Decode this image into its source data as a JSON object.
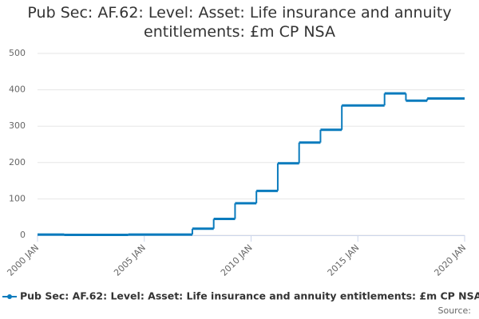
{
  "chart_data": {
    "type": "step-line",
    "title": "Pub Sec: AF.62: Level: Asset: Life insurance and annuity entitlements: £m CP NSA",
    "x": [
      "2000 JAN",
      "2001 APR",
      "2004 APR",
      "2007 APR",
      "2008 APR",
      "2009 APR",
      "2010 APR",
      "2011 APR",
      "2012 APR",
      "2013 APR",
      "2014 APR",
      "2016 APR",
      "2017 APR",
      "2018 APR",
      "2020 JAN"
    ],
    "series": [
      {
        "name": "Pub Sec: AF.62: Level: Asset: Life insurance and annuity entitlements: £m CP NSA",
        "color": "#0a7bbd",
        "values": [
          2,
          1,
          2,
          18,
          45,
          88,
          122,
          198,
          255,
          290,
          357,
          390,
          370,
          376,
          376
        ]
      }
    ],
    "xticks": [
      "2000 JAN",
      "2005 JAN",
      "2010 JAN",
      "2015 JAN",
      "2020 JAN"
    ],
    "ylim": [
      0,
      500
    ],
    "yticks": [
      0,
      100,
      200,
      300,
      400,
      500
    ],
    "grid": true,
    "source": "Source:"
  }
}
